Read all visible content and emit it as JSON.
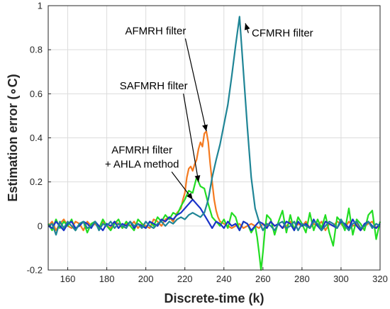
{
  "chart_data": {
    "type": "line",
    "xlabel": "Discrete-time (k)",
    "ylabel": "Estimation error (∘C)",
    "xlim": [
      150,
      320
    ],
    "ylim": [
      -0.2,
      1.0
    ],
    "xticks": [
      160,
      180,
      200,
      220,
      240,
      260,
      280,
      300,
      320
    ],
    "yticks": [
      -0.2,
      0,
      0.2,
      0.4,
      0.6,
      0.8,
      1
    ],
    "ytick_labels": [
      "-0.2",
      "0",
      "0.2",
      "0.4",
      "0.6",
      "0.8",
      "1"
    ],
    "grid": true,
    "series": [
      {
        "name": "AFMRH filter",
        "color": "#f47a20",
        "x": [
          150,
          152,
          154,
          156,
          158,
          160,
          162,
          164,
          166,
          168,
          170,
          172,
          174,
          176,
          178,
          180,
          182,
          184,
          186,
          188,
          190,
          192,
          194,
          196,
          198,
          200,
          202,
          204,
          206,
          208,
          210,
          212,
          214,
          216,
          218,
          219,
          220,
          221,
          222,
          223,
          224,
          225,
          226,
          227,
          228,
          229,
          230,
          231,
          232,
          233,
          234,
          235,
          236,
          237,
          238,
          240,
          242,
          244,
          246,
          248,
          250,
          252,
          254,
          256,
          258,
          260,
          262,
          264,
          266,
          268,
          270,
          272,
          274,
          276,
          278,
          280,
          282,
          284,
          286,
          288,
          290,
          292,
          294,
          296,
          298,
          300,
          302,
          304,
          306,
          308,
          310,
          312,
          314,
          316,
          318,
          320
        ],
        "y": [
          0.0,
          0.02,
          -0.02,
          0.01,
          0.03,
          0.0,
          -0.01,
          0.02,
          0.01,
          -0.02,
          0.02,
          0.0,
          0.01,
          -0.01,
          0.02,
          0.0,
          -0.01,
          0.02,
          0.01,
          -0.01,
          0.01,
          0.0,
          0.02,
          -0.01,
          0.01,
          0.0,
          -0.01,
          0.03,
          0.02,
          0.0,
          0.03,
          0.04,
          0.02,
          0.06,
          0.08,
          0.12,
          0.15,
          0.22,
          0.26,
          0.27,
          0.25,
          0.28,
          0.3,
          0.35,
          0.38,
          0.36,
          0.42,
          0.43,
          0.38,
          0.28,
          0.2,
          0.12,
          0.07,
          0.04,
          0.02,
          0.01,
          0.0,
          -0.01,
          0.0,
          0.01,
          -0.01,
          0.0,
          0.01,
          0.0,
          -0.01,
          0.01,
          0.0,
          0.02,
          0.0,
          0.01,
          -0.01,
          0.0,
          0.02,
          -0.01,
          0.01,
          0.0,
          0.02,
          -0.01,
          0.01,
          0.0,
          0.02,
          -0.02,
          0.01,
          0.0,
          0.02,
          0.01,
          -0.01,
          0.02,
          0.0,
          0.01,
          -0.02,
          0.0,
          0.01,
          0.02,
          -0.01,
          0.0
        ]
      },
      {
        "name": "SAFMRH filter",
        "color": "#22dd22",
        "x": [
          150,
          152,
          154,
          156,
          158,
          160,
          162,
          164,
          166,
          168,
          170,
          172,
          174,
          176,
          178,
          180,
          182,
          184,
          186,
          188,
          190,
          192,
          194,
          196,
          198,
          200,
          202,
          204,
          206,
          208,
          210,
          212,
          214,
          216,
          218,
          220,
          222,
          224,
          226,
          228,
          230,
          232,
          234,
          236,
          238,
          240,
          242,
          244,
          246,
          248,
          250,
          252,
          254,
          256,
          257,
          258,
          259,
          260,
          261,
          262,
          264,
          266,
          268,
          270,
          272,
          274,
          276,
          278,
          280,
          282,
          284,
          286,
          288,
          290,
          292,
          294,
          296,
          298,
          300,
          302,
          304,
          306,
          308,
          310,
          312,
          314,
          316,
          318,
          320
        ],
        "y": [
          0.01,
          -0.02,
          0.03,
          -0.01,
          0.02,
          0.0,
          0.03,
          -0.02,
          0.01,
          0.02,
          -0.03,
          0.01,
          0.02,
          -0.01,
          0.03,
          0.0,
          -0.02,
          0.01,
          0.03,
          -0.01,
          0.02,
          0.0,
          -0.02,
          0.03,
          0.01,
          -0.01,
          0.02,
          0.0,
          0.04,
          0.02,
          0.05,
          0.03,
          0.06,
          0.05,
          0.09,
          0.12,
          0.16,
          0.15,
          0.22,
          0.18,
          0.17,
          0.1,
          0.04,
          0.02,
          0.0,
          0.03,
          -0.01,
          0.06,
          0.04,
          -0.02,
          0.02,
          0.01,
          -0.03,
          0.0,
          -0.05,
          -0.12,
          -0.2,
          -0.12,
          -0.02,
          0.05,
          0.03,
          -0.04,
          0.02,
          0.07,
          -0.03,
          0.05,
          -0.02,
          0.04,
          0.01,
          -0.03,
          0.06,
          -0.02,
          0.03,
          -0.01,
          0.05,
          -0.03,
          -0.09,
          0.04,
          0.02,
          -0.02,
          0.08,
          -0.04,
          0.03,
          0.01,
          -0.02,
          0.05,
          0.07,
          -0.06,
          0.02
        ]
      },
      {
        "name": "AFMRH filter + AHLA method",
        "color": "#1a33c8",
        "x": [
          150,
          152,
          154,
          156,
          158,
          160,
          162,
          164,
          166,
          168,
          170,
          172,
          174,
          176,
          178,
          180,
          182,
          184,
          186,
          188,
          190,
          192,
          194,
          196,
          198,
          200,
          202,
          204,
          206,
          208,
          210,
          212,
          214,
          216,
          218,
          220,
          222,
          224,
          226,
          228,
          230,
          232,
          234,
          236,
          238,
          240,
          242,
          244,
          246,
          248,
          250,
          252,
          254,
          256,
          258,
          260,
          262,
          264,
          266,
          268,
          270,
          272,
          274,
          276,
          278,
          280,
          282,
          284,
          286,
          288,
          290,
          292,
          294,
          296,
          298,
          300,
          302,
          304,
          306,
          308,
          310,
          312,
          314,
          316,
          318,
          320
        ],
        "y": [
          0.0,
          -0.01,
          0.02,
          0.0,
          -0.02,
          0.01,
          0.02,
          -0.01,
          0.0,
          0.02,
          0.01,
          -0.01,
          0.02,
          0.0,
          -0.02,
          0.01,
          0.0,
          0.02,
          -0.01,
          0.01,
          0.0,
          0.02,
          -0.01,
          0.01,
          0.0,
          -0.01,
          0.02,
          0.01,
          0.0,
          0.03,
          0.02,
          0.04,
          0.03,
          0.05,
          0.06,
          0.08,
          0.1,
          0.12,
          0.1,
          0.08,
          0.05,
          0.02,
          -0.01,
          0.02,
          0.01,
          -0.01,
          0.02,
          0.0,
          0.01,
          -0.02,
          0.02,
          0.01,
          -0.02,
          0.0,
          0.02,
          0.01,
          -0.01,
          0.02,
          0.0,
          0.01,
          -0.01,
          0.02,
          0.01,
          -0.02,
          0.02,
          0.0,
          0.01,
          -0.01,
          0.03,
          0.0,
          -0.02,
          0.02,
          0.01,
          0.0,
          -0.01,
          0.02,
          0.01,
          -0.01,
          0.03,
          0.0,
          -0.02,
          0.01,
          0.02,
          0.0,
          -0.01,
          0.01
        ]
      },
      {
        "name": "CFMRH filter",
        "color": "#1f8596",
        "x": [
          150,
          152,
          154,
          156,
          158,
          160,
          162,
          164,
          166,
          168,
          170,
          172,
          174,
          176,
          178,
          180,
          182,
          184,
          186,
          188,
          190,
          192,
          194,
          196,
          198,
          200,
          202,
          204,
          206,
          208,
          210,
          212,
          214,
          216,
          218,
          220,
          222,
          224,
          226,
          228,
          230,
          232,
          234,
          236,
          238,
          240,
          242,
          244,
          246,
          248,
          250,
          252,
          254,
          256,
          258,
          260,
          262,
          264,
          266,
          268,
          270,
          272,
          274,
          276,
          278,
          280,
          282,
          284,
          286,
          288,
          290,
          292,
          294,
          296,
          298,
          300,
          302,
          304,
          306,
          308,
          310,
          312,
          314,
          316,
          318,
          320
        ],
        "y": [
          0.0,
          0.01,
          -0.04,
          0.02,
          -0.01,
          0.02,
          0.0,
          -0.02,
          0.01,
          0.02,
          -0.01,
          0.0,
          0.02,
          -0.02,
          0.01,
          0.0,
          0.02,
          -0.01,
          0.01,
          0.0,
          -0.01,
          0.02,
          0.0,
          0.01,
          -0.01,
          0.02,
          0.0,
          -0.01,
          0.01,
          0.02,
          0.0,
          0.02,
          0.01,
          0.03,
          0.04,
          0.03,
          0.05,
          0.06,
          0.05,
          0.04,
          0.06,
          0.12,
          0.22,
          0.3,
          0.37,
          0.46,
          0.55,
          0.68,
          0.82,
          0.95,
          0.7,
          0.45,
          0.22,
          0.08,
          0.02,
          -0.02,
          0.01,
          0.0,
          -0.02,
          0.01,
          0.02,
          -0.01,
          0.0,
          0.02,
          -0.02,
          0.01,
          0.0,
          -0.01,
          0.02,
          0.01,
          -0.02,
          0.0,
          0.02,
          0.01,
          -0.01,
          0.03,
          0.0,
          -0.02,
          0.01,
          0.02,
          -0.01,
          0.0,
          0.02,
          -0.01,
          0.01,
          0.0
        ]
      }
    ],
    "annotations": [
      {
        "text": "CFMRH filter",
        "pos": [
          270,
          0.86
        ],
        "target": [
          251,
          0.92
        ]
      },
      {
        "text": "AFMRH filter",
        "pos": [
          205,
          0.87
        ],
        "target": [
          231,
          0.43
        ]
      },
      {
        "text": "SAFMRH filter",
        "pos": [
          204,
          0.62
        ],
        "target": [
          227,
          0.2
        ]
      },
      {
        "text": "AFMRH filter",
        "pos": [
          198,
          0.33
        ],
        "target": null
      },
      {
        "text": "+ AHLA method",
        "pos": [
          198,
          0.265
        ],
        "target": [
          224,
          0.12
        ]
      }
    ]
  }
}
